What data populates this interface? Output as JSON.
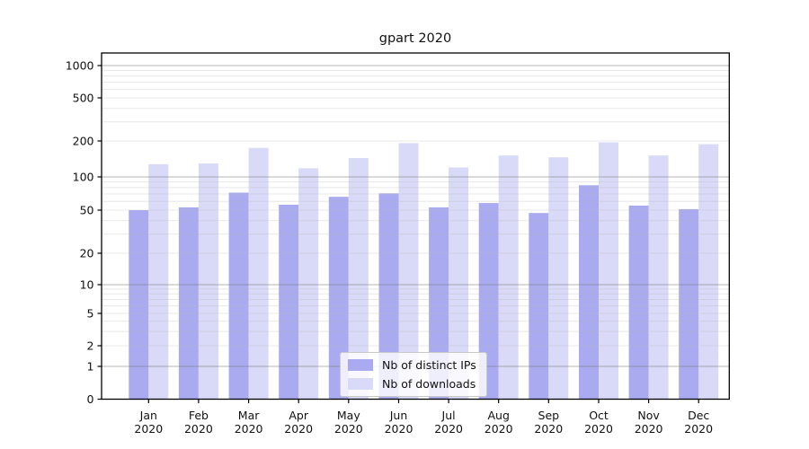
{
  "title": "gpart 2020",
  "chart_data": {
    "type": "bar",
    "title": "gpart 2020",
    "x_months": [
      "Jan",
      "Feb",
      "Mar",
      "Apr",
      "May",
      "Jun",
      "Jul",
      "Aug",
      "Sep",
      "Oct",
      "Nov",
      "Dec"
    ],
    "x_year": "2020",
    "series": [
      {
        "name": "Nb of distinct IPs",
        "color": "#aaaaf0",
        "values": [
          50,
          53,
          72,
          56,
          66,
          71,
          53,
          58,
          47,
          84,
          55,
          51
        ]
      },
      {
        "name": "Nb of downloads",
        "color": "#d9d9f8",
        "values": [
          128,
          130,
          175,
          118,
          144,
          192,
          120,
          151,
          146,
          195,
          151,
          188
        ]
      }
    ],
    "y_ticks": [
      0,
      1,
      2,
      5,
      10,
      20,
      50,
      100,
      200,
      500,
      1000
    ],
    "y_scale": "symlog",
    "ylim": [
      0,
      1300
    ],
    "grid": true,
    "legend_position": "lower center",
    "colors": {
      "axis": "#000000",
      "major_grid": "#a8a8a8",
      "minor_grid": "#e9e9e9",
      "text": "#111111"
    }
  }
}
